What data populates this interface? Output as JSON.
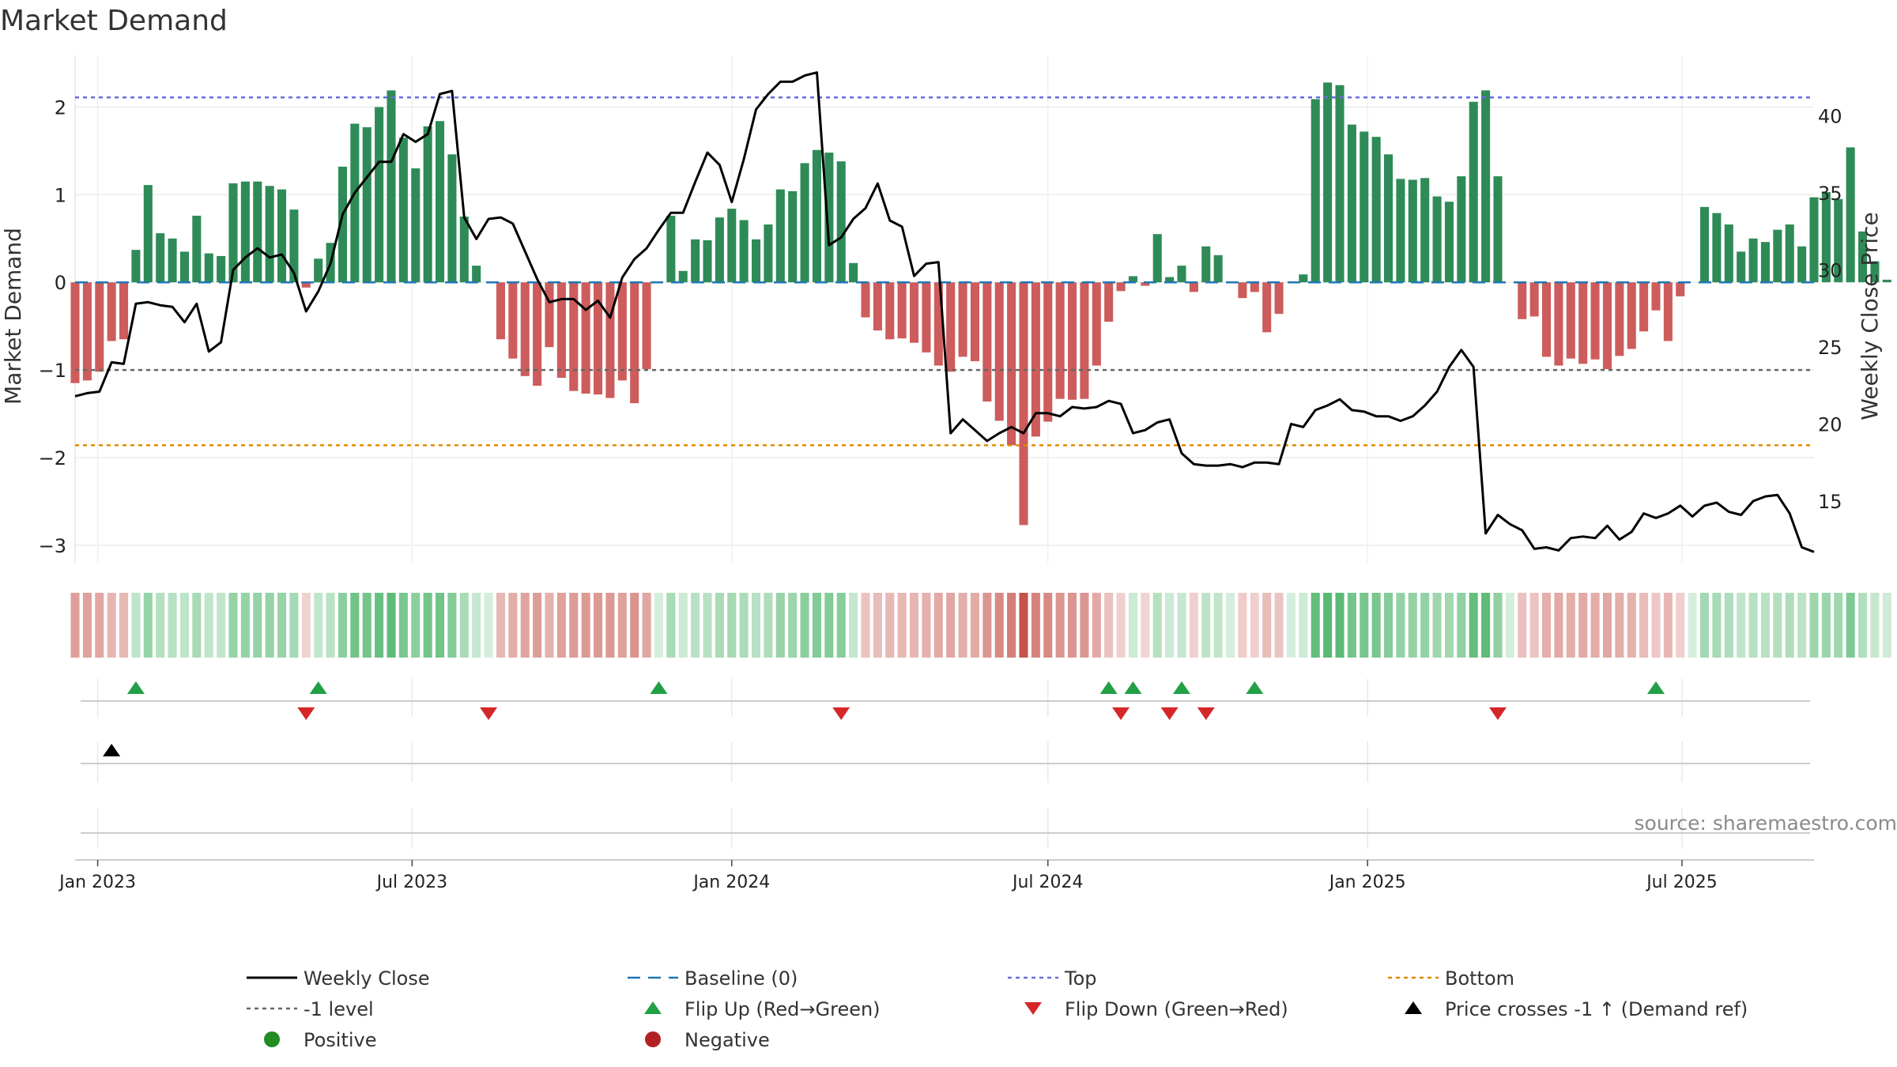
{
  "chart_data": {
    "type": "bar",
    "title": "Market Demand",
    "ylabel": "Market Demand",
    "y2label": "Weekly Close Price",
    "ylim": [
      -3.2,
      2.5
    ],
    "y2lim": [
      11,
      43.4
    ],
    "yticks": [
      "2",
      "1",
      "0",
      "−1",
      "−2",
      "−3"
    ],
    "yticks_values": [
      2,
      1,
      0,
      -1,
      -2,
      -3
    ],
    "y2ticks": [
      "40",
      "35",
      "30",
      "25",
      "20",
      "15"
    ],
    "y2ticks_values": [
      40,
      35,
      30,
      25,
      20,
      15
    ],
    "x_start": "2022-12-19",
    "x_step_days": 7,
    "x_end": "2025-09-15",
    "date_ticks": [
      {
        "label": "Jan 2023",
        "date": "2023-01-01"
      },
      {
        "label": "Jul 2023",
        "date": "2023-07-01"
      },
      {
        "label": "Jan 2024",
        "date": "2024-01-01"
      },
      {
        "label": "Jul 2024",
        "date": "2024-07-01"
      },
      {
        "label": "Jan 2025",
        "date": "2025-01-01"
      },
      {
        "label": "Jul 2025",
        "date": "2025-07-01"
      }
    ],
    "levels": {
      "top": 2.11,
      "minus_one": -1.0,
      "bottom": -1.86,
      "baseline": 0
    },
    "demand": [
      -1.15,
      -1.12,
      -1.02,
      -0.67,
      -0.65,
      0.37,
      1.11,
      0.56,
      0.5,
      0.35,
      0.76,
      0.33,
      0.3,
      1.13,
      1.15,
      1.15,
      1.1,
      1.06,
      0.83,
      -0.06,
      0.27,
      0.45,
      1.32,
      1.81,
      1.77,
      2.0,
      2.19,
      1.65,
      1.3,
      1.78,
      1.84,
      1.46,
      0.75,
      0.19,
      0.0,
      -0.65,
      -0.87,
      -1.07,
      -1.18,
      -0.74,
      -1.09,
      -1.24,
      -1.27,
      -1.28,
      -1.32,
      -1.12,
      -1.38,
      -0.99,
      0.0,
      0.76,
      0.13,
      0.49,
      0.48,
      0.74,
      0.84,
      0.71,
      0.49,
      0.66,
      1.06,
      1.04,
      1.36,
      1.51,
      1.48,
      1.38,
      0.22,
      -0.4,
      -0.55,
      -0.65,
      -0.64,
      -0.69,
      -0.8,
      -0.95,
      -1.02,
      -0.85,
      -0.9,
      -1.36,
      -1.58,
      -1.86,
      -2.77,
      -1.76,
      -1.59,
      -1.33,
      -1.34,
      -1.33,
      -0.95,
      -0.45,
      -0.1,
      0.07,
      -0.04,
      0.55,
      0.06,
      0.19,
      -0.11,
      0.41,
      0.31,
      0.0,
      -0.18,
      -0.11,
      -0.57,
      -0.36,
      0.0,
      0.09,
      2.09,
      2.28,
      2.25,
      1.8,
      1.72,
      1.66,
      1.46,
      1.18,
      1.17,
      1.19,
      0.98,
      0.92,
      1.21,
      2.06,
      2.19,
      1.21,
      0.0,
      -0.42,
      -0.39,
      -0.85,
      -0.95,
      -0.87,
      -0.93,
      -0.88,
      -0.99,
      -0.84,
      -0.76,
      -0.56,
      -0.32,
      -0.67,
      -0.16,
      0.0,
      0.86,
      0.79,
      0.66,
      0.35,
      0.5,
      0.46,
      0.6,
      0.66,
      0.41,
      0.97,
      1.03,
      0.95,
      1.54,
      0.58,
      0.24,
      0.03
    ],
    "close": [
      21.8,
      22.0,
      22.1,
      24.0,
      23.9,
      27.8,
      27.9,
      27.7,
      27.6,
      26.6,
      27.8,
      24.7,
      25.3,
      30.0,
      30.8,
      31.4,
      30.8,
      31.0,
      29.8,
      27.3,
      28.6,
      30.4,
      33.6,
      35.0,
      36.0,
      37.0,
      37.0,
      38.8,
      38.3,
      38.8,
      41.4,
      41.6,
      33.4,
      32.0,
      33.3,
      33.4,
      33.0,
      31.2,
      29.4,
      27.9,
      28.1,
      28.1,
      27.4,
      28.0,
      26.9,
      29.5,
      30.7,
      31.4,
      32.6,
      33.7,
      33.7,
      35.7,
      37.6,
      36.8,
      34.4,
      37.2,
      40.4,
      41.4,
      42.2,
      42.2,
      42.6,
      42.8,
      31.6,
      32.1,
      33.3,
      34.0,
      35.6,
      33.2,
      32.8,
      29.6,
      30.4,
      30.5,
      19.4,
      20.3,
      19.6,
      18.9,
      19.4,
      19.8,
      19.4,
      20.7,
      20.7,
      20.5,
      21.1,
      21.0,
      21.1,
      21.5,
      21.3,
      19.4,
      19.6,
      20.1,
      20.3,
      18.1,
      17.4,
      17.3,
      17.3,
      17.4,
      17.2,
      17.5,
      17.5,
      17.4,
      20.0,
      19.8,
      20.9,
      21.2,
      21.6,
      20.9,
      20.8,
      20.5,
      20.5,
      20.2,
      20.5,
      21.2,
      22.1,
      23.7,
      24.8,
      23.7,
      12.9,
      14.1,
      13.5,
      13.1,
      11.9,
      12.0,
      11.8,
      12.6,
      12.7,
      12.6,
      13.4,
      12.5,
      13.0,
      14.2,
      13.9,
      14.2,
      14.7,
      14.0,
      14.7,
      14.9,
      14.3,
      14.1,
      15.0,
      15.3,
      15.4,
      14.2,
      12.0,
      11.7
    ],
    "flip_up_idx": [
      5,
      20,
      48,
      85,
      87,
      91,
      97,
      130
    ],
    "flip_down_idx": [
      19,
      34,
      63,
      86,
      90,
      93,
      117
    ],
    "price_cross_idx": [
      3
    ],
    "legend": [
      {
        "key": "weekly_close",
        "label": "Weekly Close"
      },
      {
        "key": "baseline",
        "label": "Baseline (0)"
      },
      {
        "key": "top",
        "label": "Top"
      },
      {
        "key": "bottom",
        "label": "Bottom"
      },
      {
        "key": "minus_one",
        "label": "-1 level"
      },
      {
        "key": "flip_up",
        "label": "Flip Up (Red→Green)"
      },
      {
        "key": "flip_down",
        "label": "Flip Down (Green→Red)"
      },
      {
        "key": "price_cross",
        "label": "Price crosses -1 ↑ (Demand ref)"
      },
      {
        "key": "positive",
        "label": "Positive"
      },
      {
        "key": "negative",
        "label": "Negative"
      }
    ],
    "source": "source: sharemaestro.com"
  },
  "colors": {
    "positive_bar": "#2e8b57",
    "negative_bar": "#cd5c5c",
    "price_line": "#000000",
    "baseline": "#1f77b4",
    "top": "#6a6ade",
    "bottom": "#e08a00",
    "minus_one": "#666666",
    "flip_up": "#22a046",
    "flip_down": "#d62728",
    "price_cross": "#000000",
    "positive_dot": "#228b22",
    "negative_dot": "#b22222"
  }
}
